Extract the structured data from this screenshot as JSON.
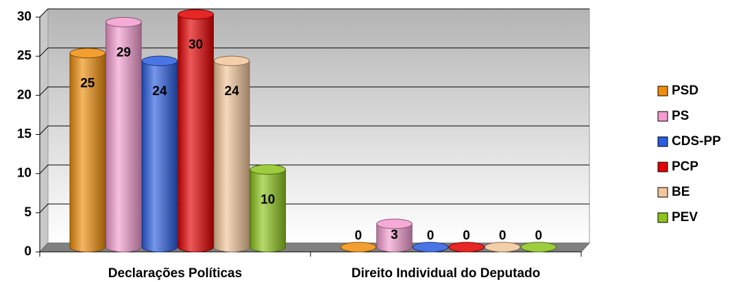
{
  "chart_data": {
    "type": "bar",
    "categories": [
      "Declarações Políticas",
      "Direito Individual do Deputado"
    ],
    "series": [
      {
        "name": "PSD",
        "color": "#ee8e0c",
        "values": [
          25,
          0
        ]
      },
      {
        "name": "PS",
        "color": "#f39ccf",
        "values": [
          29,
          3
        ]
      },
      {
        "name": "CDS-PP",
        "color": "#2a5de0",
        "values": [
          24,
          0
        ]
      },
      {
        "name": "PCP",
        "color": "#e30000",
        "values": [
          30,
          0
        ]
      },
      {
        "name": "BE",
        "color": "#f2c59a",
        "values": [
          24,
          0
        ]
      },
      {
        "name": "PEV",
        "color": "#8cc41c",
        "values": [
          10,
          0
        ]
      }
    ],
    "ylim": [
      0,
      30
    ],
    "yticks": [
      0,
      5,
      10,
      15,
      20,
      25,
      30
    ],
    "grid": true,
    "legend": "right"
  }
}
